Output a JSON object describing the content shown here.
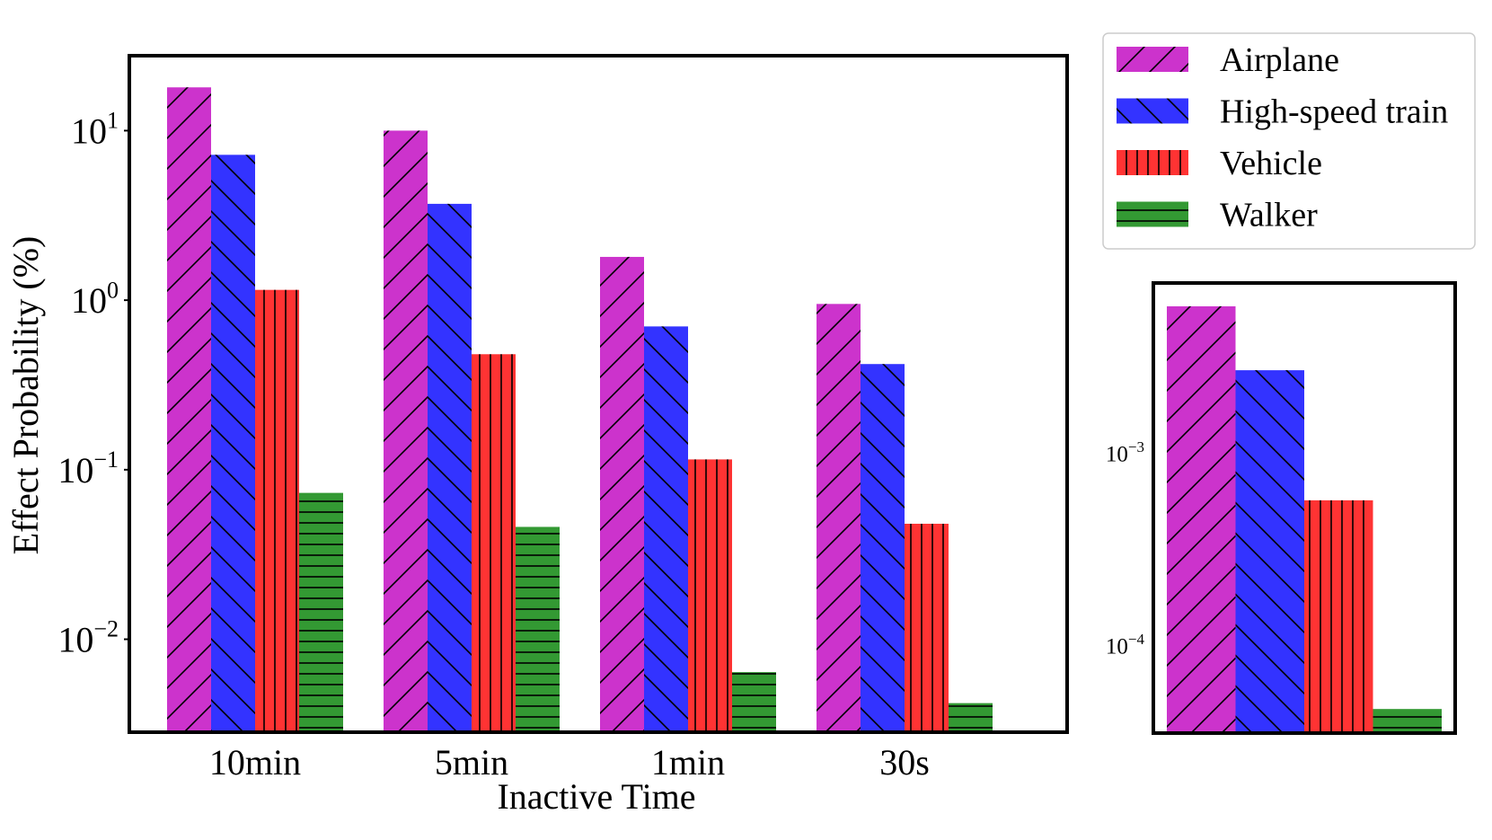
{
  "chart_data": [
    {
      "type": "bar",
      "yscale": "log",
      "xlabel": "Inactive Time",
      "ylabel": "Effect Probability (%)",
      "categories": [
        "10min",
        "5min",
        "1min",
        "30s"
      ],
      "ylim": [
        0.0029,
        27
      ],
      "yticks": [
        {
          "base": "10",
          "exp": "1",
          "value": 10
        },
        {
          "base": "10",
          "exp": "0",
          "value": 1
        },
        {
          "base": "10",
          "exp": "−1",
          "value": 0.1
        },
        {
          "base": "10",
          "exp": "−2",
          "value": 0.01
        }
      ],
      "series": [
        {
          "name": "Airplane",
          "color": "#cc33cc",
          "hatch": "diagonal-up",
          "values": [
            18,
            10,
            1.8,
            0.95
          ]
        },
        {
          "name": "High-speed train",
          "color": "#3333ff",
          "hatch": "diagonal-down",
          "values": [
            7.2,
            3.7,
            0.7,
            0.42
          ]
        },
        {
          "name": "Vehicle",
          "color": "#ff3333",
          "hatch": "vertical",
          "values": [
            1.15,
            0.48,
            0.115,
            0.048
          ]
        },
        {
          "name": "Walker",
          "color": "#339933",
          "hatch": "horizontal",
          "values": [
            0.073,
            0.046,
            0.0064,
            0.0042
          ]
        }
      ]
    },
    {
      "type": "bar",
      "yscale": "log",
      "inset": true,
      "ylim": [
        3.6e-05,
        0.0075
      ],
      "yticks": [
        {
          "base": "10",
          "exp": "−3",
          "value": 0.001
        },
        {
          "base": "10",
          "exp": "−4",
          "value": 0.0001
        }
      ],
      "series": [
        {
          "name": "Airplane",
          "color": "#cc33cc",
          "hatch": "diagonal-up",
          "values": [
            0.0058
          ]
        },
        {
          "name": "High-speed train",
          "color": "#3333ff",
          "hatch": "diagonal-down",
          "values": [
            0.0027
          ]
        },
        {
          "name": "Vehicle",
          "color": "#ff3333",
          "hatch": "vertical",
          "values": [
            0.00057
          ]
        },
        {
          "name": "Walker",
          "color": "#339933",
          "hatch": "horizontal",
          "values": [
            4.7e-05
          ]
        }
      ]
    }
  ],
  "legend": {
    "position": "top-right",
    "items": [
      "Airplane",
      "High-speed train",
      "Vehicle",
      "Walker"
    ]
  }
}
